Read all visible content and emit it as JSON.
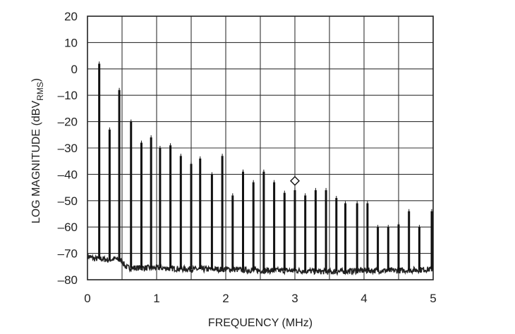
{
  "chart_data": {
    "type": "line",
    "title": "",
    "xlabel": "FREQUENCY (MHz)",
    "ylabel": {
      "prefix": "LOG MAGNITUDE (dBV",
      "subscript": "RMS",
      "suffix": ")"
    },
    "xlim": [
      0,
      5
    ],
    "ylim": [
      -80,
      20
    ],
    "x_ticks": [
      "0",
      "1",
      "2",
      "3",
      "4",
      "5"
    ],
    "y_ticks": [
      "20",
      "10",
      "0",
      "–10",
      "–20",
      "–30",
      "–40",
      "–50",
      "–60",
      "–70",
      "–80"
    ],
    "grid": true,
    "grid_divisions_x": 10,
    "grid_divisions_y": 10,
    "marker": {
      "shape": "diamond",
      "x": 3.0,
      "y": -42.5
    },
    "series": [
      {
        "noise_floor": [
          [
            0.0,
            -71
          ],
          [
            0.1,
            -72
          ],
          [
            0.2,
            -72
          ],
          [
            0.3,
            -72.5
          ],
          [
            0.4,
            -72
          ],
          [
            0.5,
            -73
          ],
          [
            0.55,
            -75
          ],
          [
            0.6,
            -75.5
          ],
          [
            1.0,
            -75.5
          ],
          [
            1.5,
            -76
          ],
          [
            2.0,
            -76
          ],
          [
            2.5,
            -76.5
          ],
          [
            3.0,
            -76.5
          ],
          [
            3.5,
            -77
          ],
          [
            4.0,
            -76.5
          ],
          [
            4.5,
            -76.5
          ],
          [
            5.0,
            -76
          ]
        ],
        "spurs": [
          [
            0.17,
            2
          ],
          [
            0.32,
            -23
          ],
          [
            0.46,
            -8
          ],
          [
            0.63,
            -20
          ],
          [
            0.78,
            -28
          ],
          [
            0.92,
            -26
          ],
          [
            1.05,
            -30
          ],
          [
            1.2,
            -29
          ],
          [
            1.35,
            -33
          ],
          [
            1.5,
            -36
          ],
          [
            1.63,
            -34
          ],
          [
            1.8,
            -40
          ],
          [
            1.95,
            -33
          ],
          [
            2.1,
            -48
          ],
          [
            2.25,
            -39
          ],
          [
            2.4,
            -43
          ],
          [
            2.55,
            -39
          ],
          [
            2.7,
            -43
          ],
          [
            2.85,
            -47
          ],
          [
            3.0,
            -46
          ],
          [
            3.15,
            -48
          ],
          [
            3.3,
            -46
          ],
          [
            3.45,
            -46
          ],
          [
            3.6,
            -49
          ],
          [
            3.73,
            -51
          ],
          [
            3.9,
            -51
          ],
          [
            4.05,
            -51
          ],
          [
            4.2,
            -60
          ],
          [
            4.35,
            -60
          ],
          [
            4.5,
            -59
          ],
          [
            4.65,
            -54
          ],
          [
            4.8,
            -60
          ],
          [
            5.0,
            -54
          ]
        ]
      }
    ]
  }
}
